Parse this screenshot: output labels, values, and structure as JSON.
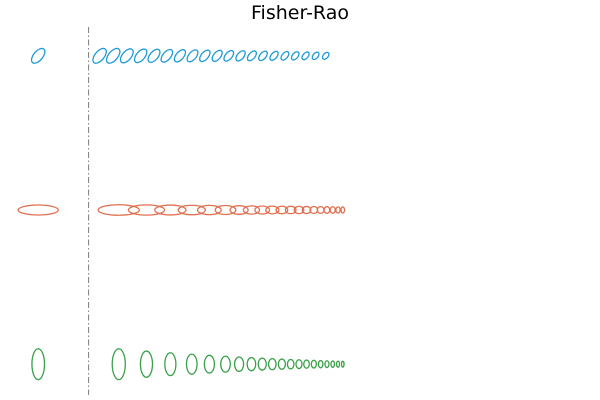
{
  "chart_data": {
    "type": "scatter",
    "title": "Fisher-Rao",
    "xlabel": "",
    "ylabel": "",
    "grid": false,
    "axes_visible": false,
    "xlim": [
      -3.2,
      20
    ],
    "ylim": [
      -2.4,
      2.4
    ],
    "divider": {
      "x": 0,
      "style": "dash-dot",
      "color": "#888888"
    },
    "series": [
      {
        "color": "#1f9bd6",
        "reference_ellipse": {
          "cx": -2.0,
          "cy": 2.0,
          "rx": 0.35,
          "ry": 0.06,
          "angle": -50
        },
        "ellipses": [
          {
            "cx": 0.44,
            "cy": 2.0,
            "rx": 0.35,
            "ry": 0.06,
            "angle": -50
          },
          {
            "cx": 0.98,
            "cy": 2.0,
            "rx": 0.35,
            "ry": 0.06,
            "angle": -50
          },
          {
            "cx": 1.52,
            "cy": 2.0,
            "rx": 0.33,
            "ry": 0.058,
            "angle": -50
          },
          {
            "cx": 2.07,
            "cy": 2.0,
            "rx": 0.32,
            "ry": 0.056,
            "angle": -50
          },
          {
            "cx": 2.6,
            "cy": 2.0,
            "rx": 0.31,
            "ry": 0.054,
            "angle": -50
          },
          {
            "cx": 3.11,
            "cy": 2.0,
            "rx": 0.3,
            "ry": 0.052,
            "angle": -50
          },
          {
            "cx": 3.63,
            "cy": 2.0,
            "rx": 0.29,
            "ry": 0.05,
            "angle": -50
          },
          {
            "cx": 4.13,
            "cy": 2.0,
            "rx": 0.28,
            "ry": 0.049,
            "angle": -50
          },
          {
            "cx": 4.62,
            "cy": 2.0,
            "rx": 0.27,
            "ry": 0.047,
            "angle": -50
          },
          {
            "cx": 5.11,
            "cy": 2.0,
            "rx": 0.26,
            "ry": 0.046,
            "angle": -50
          },
          {
            "cx": 5.57,
            "cy": 2.0,
            "rx": 0.25,
            "ry": 0.044,
            "angle": -50
          },
          {
            "cx": 6.04,
            "cy": 2.0,
            "rx": 0.24,
            "ry": 0.043,
            "angle": -50
          },
          {
            "cx": 6.49,
            "cy": 2.0,
            "rx": 0.23,
            "ry": 0.041,
            "angle": -50
          },
          {
            "cx": 6.93,
            "cy": 2.0,
            "rx": 0.22,
            "ry": 0.04,
            "angle": -50
          },
          {
            "cx": 7.37,
            "cy": 2.0,
            "rx": 0.21,
            "ry": 0.038,
            "angle": -50
          },
          {
            "cx": 7.8,
            "cy": 2.0,
            "rx": 0.2,
            "ry": 0.037,
            "angle": -50
          },
          {
            "cx": 8.21,
            "cy": 2.0,
            "rx": 0.19,
            "ry": 0.036,
            "angle": -50
          },
          {
            "cx": 8.62,
            "cy": 2.0,
            "rx": 0.18,
            "ry": 0.034,
            "angle": -50
          },
          {
            "cx": 9.02,
            "cy": 2.0,
            "rx": 0.17,
            "ry": 0.033,
            "angle": -50
          },
          {
            "cx": 9.42,
            "cy": 2.0,
            "rx": 0.16,
            "ry": 0.032,
            "angle": -50
          }
        ]
      },
      {
        "color": "#e07050",
        "reference_ellipse": {
          "cx": -2.0,
          "cy": 0.0,
          "rx": 0.8,
          "ry": 0.065,
          "angle": 0
        },
        "ellipses": [
          {
            "cx": 1.2,
            "cy": 0.0,
            "rx": 0.82,
            "ry": 0.068,
            "angle": 0
          },
          {
            "cx": 2.3,
            "cy": 0.0,
            "rx": 0.72,
            "ry": 0.066,
            "angle": 0
          },
          {
            "cx": 3.25,
            "cy": 0.0,
            "rx": 0.62,
            "ry": 0.064,
            "angle": 0
          },
          {
            "cx": 4.1,
            "cy": 0.0,
            "rx": 0.54,
            "ry": 0.062,
            "angle": 0
          },
          {
            "cx": 4.8,
            "cy": 0.0,
            "rx": 0.47,
            "ry": 0.06,
            "angle": 0
          },
          {
            "cx": 5.44,
            "cy": 0.0,
            "rx": 0.41,
            "ry": 0.058,
            "angle": 0
          },
          {
            "cx": 5.98,
            "cy": 0.0,
            "rx": 0.36,
            "ry": 0.056,
            "angle": 0
          },
          {
            "cx": 6.47,
            "cy": 0.0,
            "rx": 0.32,
            "ry": 0.054,
            "angle": 0
          },
          {
            "cx": 6.9,
            "cy": 0.0,
            "rx": 0.29,
            "ry": 0.052,
            "angle": 0
          },
          {
            "cx": 7.3,
            "cy": 0.0,
            "rx": 0.26,
            "ry": 0.05,
            "angle": 0
          },
          {
            "cx": 7.68,
            "cy": 0.0,
            "rx": 0.23,
            "ry": 0.049,
            "angle": 0
          },
          {
            "cx": 8.03,
            "cy": 0.0,
            "rx": 0.21,
            "ry": 0.048,
            "angle": 0
          },
          {
            "cx": 8.36,
            "cy": 0.0,
            "rx": 0.19,
            "ry": 0.047,
            "angle": 0
          },
          {
            "cx": 8.66,
            "cy": 0.0,
            "rx": 0.17,
            "ry": 0.046,
            "angle": 0
          },
          {
            "cx": 8.95,
            "cy": 0.0,
            "rx": 0.15,
            "ry": 0.045,
            "angle": 0
          },
          {
            "cx": 9.22,
            "cy": 0.0,
            "rx": 0.13,
            "ry": 0.044,
            "angle": 0
          },
          {
            "cx": 9.47,
            "cy": 0.0,
            "rx": 0.115,
            "ry": 0.043,
            "angle": 0
          },
          {
            "cx": 9.7,
            "cy": 0.0,
            "rx": 0.1,
            "ry": 0.042,
            "angle": 0
          },
          {
            "cx": 9.91,
            "cy": 0.0,
            "rx": 0.085,
            "ry": 0.041,
            "angle": 0
          },
          {
            "cx": 10.1,
            "cy": 0.0,
            "rx": 0.07,
            "ry": 0.04,
            "angle": 0
          }
        ]
      },
      {
        "color": "#3aa04a",
        "reference_ellipse": {
          "cx": -2.0,
          "cy": -2.0,
          "rx": 0.25,
          "ry": 0.2,
          "angle": 0
        },
        "ellipses": [
          {
            "cx": 1.2,
            "cy": -2.0,
            "rx": 0.26,
            "ry": 0.2,
            "angle": 0
          },
          {
            "cx": 2.3,
            "cy": -2.0,
            "rx": 0.24,
            "ry": 0.17,
            "angle": 0
          },
          {
            "cx": 3.25,
            "cy": -2.0,
            "rx": 0.22,
            "ry": 0.148,
            "angle": 0
          },
          {
            "cx": 4.1,
            "cy": -2.0,
            "rx": 0.21,
            "ry": 0.13,
            "angle": 0
          },
          {
            "cx": 4.8,
            "cy": -2.0,
            "rx": 0.2,
            "ry": 0.115,
            "angle": 0
          },
          {
            "cx": 5.44,
            "cy": -2.0,
            "rx": 0.19,
            "ry": 0.103,
            "angle": 0
          },
          {
            "cx": 5.98,
            "cy": -2.0,
            "rx": 0.18,
            "ry": 0.093,
            "angle": 0
          },
          {
            "cx": 6.47,
            "cy": -2.0,
            "rx": 0.17,
            "ry": 0.085,
            "angle": 0
          },
          {
            "cx": 6.9,
            "cy": -2.0,
            "rx": 0.16,
            "ry": 0.078,
            "angle": 0
          },
          {
            "cx": 7.3,
            "cy": -2.0,
            "rx": 0.15,
            "ry": 0.072,
            "angle": 0
          },
          {
            "cx": 7.68,
            "cy": -2.0,
            "rx": 0.14,
            "ry": 0.066,
            "angle": 0
          },
          {
            "cx": 8.03,
            "cy": -2.0,
            "rx": 0.13,
            "ry": 0.061,
            "angle": 0
          },
          {
            "cx": 8.36,
            "cy": -2.0,
            "rx": 0.12,
            "ry": 0.057,
            "angle": 0
          },
          {
            "cx": 8.66,
            "cy": -2.0,
            "rx": 0.11,
            "ry": 0.053,
            "angle": 0
          },
          {
            "cx": 8.95,
            "cy": -2.0,
            "rx": 0.1,
            "ry": 0.05,
            "angle": 0
          },
          {
            "cx": 9.22,
            "cy": -2.0,
            "rx": 0.09,
            "ry": 0.047,
            "angle": 0
          },
          {
            "cx": 9.47,
            "cy": -2.0,
            "rx": 0.08,
            "ry": 0.044,
            "angle": 0
          },
          {
            "cx": 9.7,
            "cy": -2.0,
            "rx": 0.07,
            "ry": 0.042,
            "angle": 0
          },
          {
            "cx": 9.91,
            "cy": -2.0,
            "rx": 0.06,
            "ry": 0.04,
            "angle": 0
          },
          {
            "cx": 10.1,
            "cy": -2.0,
            "rx": 0.05,
            "ry": 0.038,
            "angle": 0
          }
        ]
      }
    ]
  }
}
